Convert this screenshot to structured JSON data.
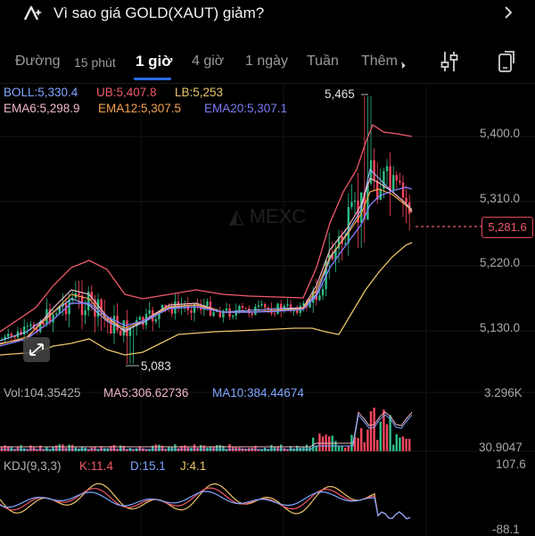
{
  "header": {
    "title": "Vì sao giá GOLD(XAUT) giảm?",
    "ai_icon": "ai-sparkle-icon",
    "chevron_icon": "chevron-right-icon"
  },
  "tabs": [
    {
      "label": "Đường"
    },
    {
      "label": "15 phút"
    },
    {
      "label": "1 giờ",
      "active": true
    },
    {
      "label": "4 giờ"
    },
    {
      "label": "1 ngày"
    },
    {
      "label": "Tuần"
    },
    {
      "label": "Thêm"
    }
  ],
  "toolbar": {
    "indicator_icon": "sliders-icon",
    "fullscreen_icon": "phone-rotate-icon"
  },
  "legend": {
    "boll": "BOLL:5,330.4",
    "ub": "UB:5,407.8",
    "lb": "LB:5,253",
    "ema6": "EMA6:5,298.9",
    "ema12": "EMA12:5,307.5",
    "ema20": "EMA20:5,307.1"
  },
  "price_axis": [
    "5,400.0",
    "5,310.0",
    "5,220.0",
    "5,130.0"
  ],
  "current_price": "5,281.6",
  "high_label": "5,465",
  "low_label": "5,083",
  "volume": {
    "vol": "Vol:104.35425",
    "ma5": "MA5:306.62736",
    "ma10": "MA10:384.44674",
    "axis_max": "3.296K",
    "axis_mid": "30.9047"
  },
  "kdj": {
    "label": "KDJ(9,3,3)",
    "k": "K:11.4",
    "d": "D:15.1",
    "j": "J:4.1",
    "axis_max": "107.6",
    "axis_min": "-88.1"
  },
  "colors": {
    "up": "#2ebd85",
    "down": "#f6465d",
    "ub": "#f05a6a",
    "boll": "#e9c46a",
    "ema6": "#f2b6c6",
    "ema12": "#f3a250",
    "ema20": "#7b7cf2",
    "accent": "#2c6bf2"
  }
}
